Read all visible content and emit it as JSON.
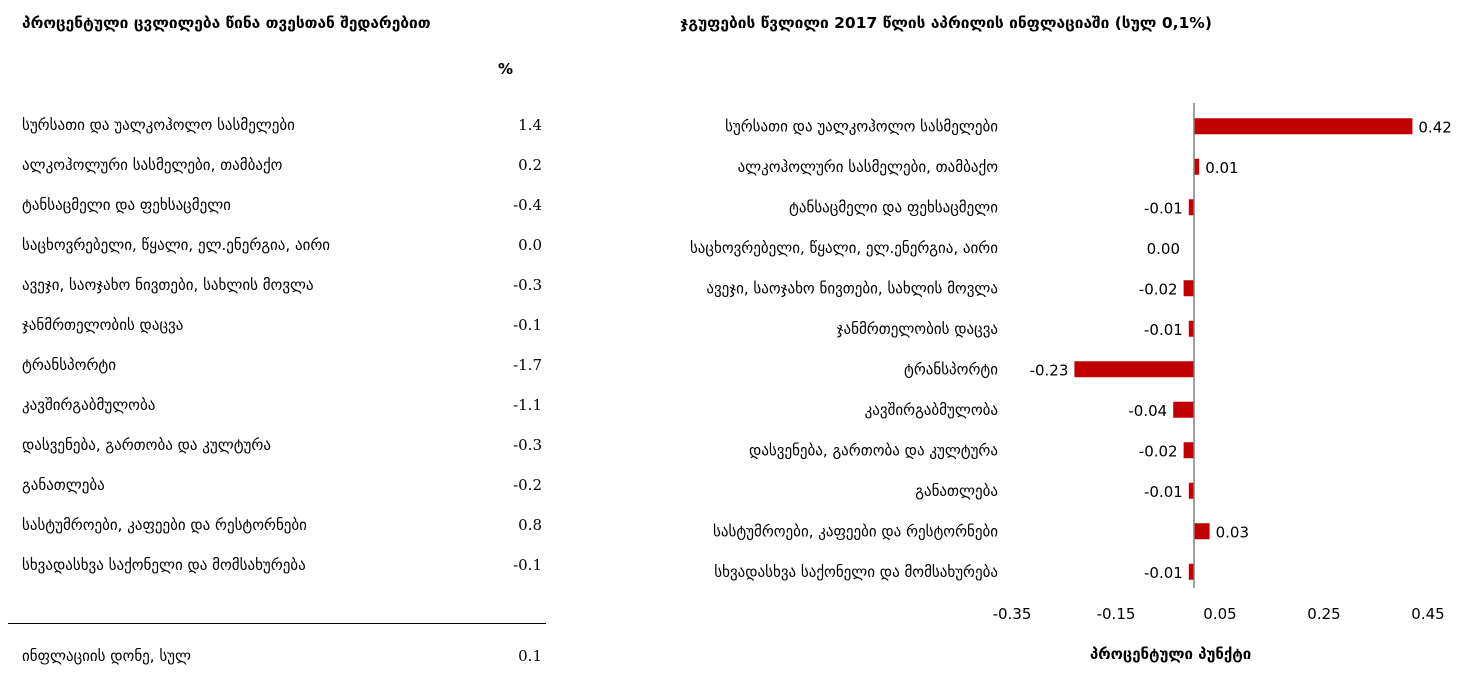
{
  "table": {
    "title": "პროცენტული ცვლილება წინა თვესთან შედარებით",
    "unit": "%",
    "rows": [
      {
        "label": "სურსათი და უალკოჰოლო სასმელები",
        "value": "1.4"
      },
      {
        "label": "ალკოჰოლური სასმელები, თამბაქო",
        "value": "0.2"
      },
      {
        "label": "ტანსაცმელი და ფეხსაცმელი",
        "value": "-0.4"
      },
      {
        "label": "საცხოვრებელი, წყალი, ელ.ენერგია, აირი",
        "value": "0.0"
      },
      {
        "label": "ავეჯი, საოჯახო ნივთები, სახლის მოვლა",
        "value": "-0.3"
      },
      {
        "label": "ჯანმრთელობის დაცვა",
        "value": "-0.1"
      },
      {
        "label": "ტრანსპორტი",
        "value": "-1.7"
      },
      {
        "label": "კავშირგაბმულობა",
        "value": "-1.1"
      },
      {
        "label": "დასვენება, გართობა და კულტურა",
        "value": "-0.3"
      },
      {
        "label": "განათლება",
        "value": "-0.2"
      },
      {
        "label": "სასტუმროები, კაფეები და რესტორნები",
        "value": "0.8"
      },
      {
        "label": "სხვადასხვა საქონელი და მომსახურება",
        "value": "-0.1"
      }
    ],
    "total": {
      "label": "ინფლაციის დონე, სულ",
      "value": "0.1"
    }
  },
  "chart_data": {
    "type": "bar",
    "orientation": "horizontal",
    "title": "ჯგუფების წვლილი 2017 წლის აპრილის ინფლაციაში (სულ 0,1%)",
    "xlabel": "პროცენტული პუნქტი",
    "ylabel": "",
    "categories": [
      "სურსათი და უალკოჰოლო სასმელები",
      "ალკოჰოლური  სასმელები, თამბაქო",
      "ტანსაცმელი და ფეხსაცმელი",
      "საცხოვრებელი, წყალი, ელ.ენერგია, აირი",
      "ავეჯი, საოჯახო ნივთები, სახლის მოვლა",
      "ჯანმრთელობის დაცვა",
      "ტრანსპორტი",
      "კავშირგაბმულობა",
      "დასვენება, გართობა და კულტურა",
      "განათლება",
      "სასტუმროები, კაფეები და რესტორნები",
      "სხვადასხვა საქონელი და მომსახურება"
    ],
    "values": [
      0.42,
      0.01,
      -0.01,
      0.0,
      -0.02,
      -0.01,
      -0.23,
      -0.04,
      -0.02,
      -0.01,
      0.03,
      -0.01
    ],
    "data_labels": [
      "0.42",
      "0.01",
      "-0.01",
      "0.00",
      "-0.02",
      "-0.01",
      "-0.23",
      "-0.04",
      "-0.02",
      "-0.01",
      "0.03",
      "-0.01"
    ],
    "xlim": [
      -0.35,
      0.45
    ],
    "xticks": [
      -0.35,
      -0.15,
      0.05,
      0.25,
      0.45
    ],
    "xtick_labels": [
      "-0.35",
      "-0.15",
      "0.05",
      "0.25",
      "0.45"
    ],
    "bar_color": "#c00000",
    "axis_color": "#808080",
    "grid": false,
    "legend": "none"
  }
}
